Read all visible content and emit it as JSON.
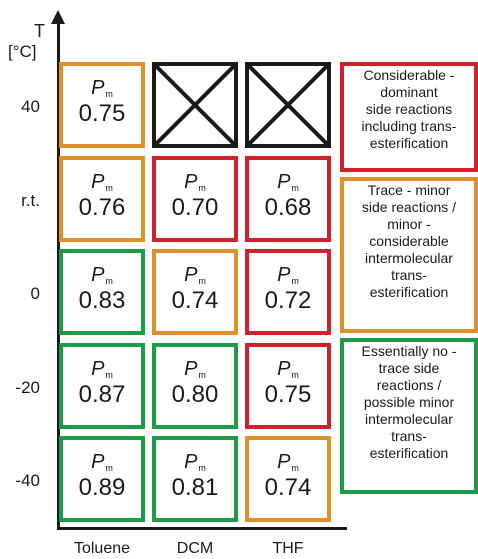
{
  "chart_data": {
    "type": "table",
    "ylabel": "T",
    "yunit": "[°C]",
    "rows": [
      "40",
      "r.t.",
      "0",
      "-20",
      "-40"
    ],
    "columns": [
      "Toluene",
      "DCM",
      "THF"
    ],
    "symbol": "P",
    "symbol_sub": "m",
    "cells": [
      [
        {
          "value": "0.75",
          "category": "orange"
        },
        {
          "value": null,
          "category": "none"
        },
        {
          "value": null,
          "category": "none"
        }
      ],
      [
        {
          "value": "0.76",
          "category": "orange"
        },
        {
          "value": "0.70",
          "category": "red"
        },
        {
          "value": "0.68",
          "category": "red"
        }
      ],
      [
        {
          "value": "0.83",
          "category": "green"
        },
        {
          "value": "0.74",
          "category": "orange"
        },
        {
          "value": "0.72",
          "category": "red"
        }
      ],
      [
        {
          "value": "0.87",
          "category": "green"
        },
        {
          "value": "0.80",
          "category": "green"
        },
        {
          "value": "0.75",
          "category": "red"
        }
      ],
      [
        {
          "value": "0.89",
          "category": "green"
        },
        {
          "value": "0.81",
          "category": "green"
        },
        {
          "value": "0.74",
          "category": "orange"
        }
      ]
    ],
    "legend": [
      {
        "category": "red",
        "text": "Considerable -\ndominant\nside reactions\nincluding trans-\nesterification"
      },
      {
        "category": "orange",
        "text": "Trace - minor\nside reactions /\nminor -\nconsiderable\nintermolecular\ntrans-\nesterification"
      },
      {
        "category": "green",
        "text": "Essentially no -\ntrace side\nreactions /\npossible  minor\nintermolecular\ntrans-\nesterification"
      }
    ]
  },
  "colors": {
    "red": "#d0202a",
    "orange": "#e0902a",
    "green": "#1f9a46",
    "none": "#1a1a1a"
  }
}
